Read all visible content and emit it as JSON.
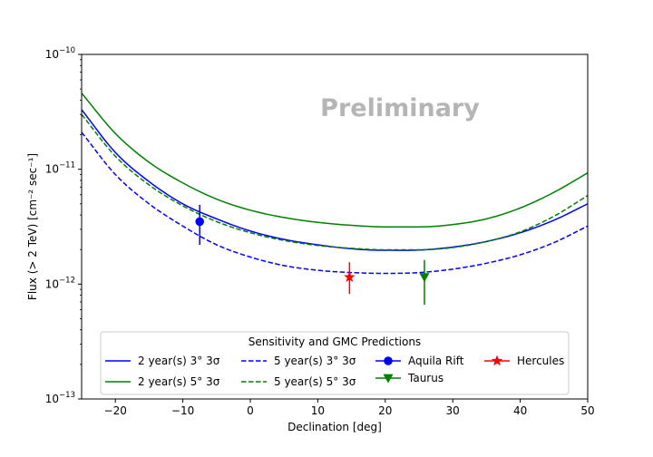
{
  "chart_data": {
    "type": "line",
    "title": "",
    "xlabel": "Declination [deg]",
    "ylabel": "Flux (> 2 TeV) [cm⁻² sec⁻¹]",
    "xlim": [
      -25,
      50
    ],
    "ylim": [
      1e-13,
      1e-10
    ],
    "yscale": "log",
    "x_ticks": [
      -20,
      -10,
      0,
      10,
      20,
      30,
      40,
      50
    ],
    "y_ticks": [
      1e-13,
      1e-12,
      1e-11,
      1e-10
    ],
    "y_tick_labels": [
      {
        "base": "10",
        "exp": "−13"
      },
      {
        "base": "10",
        "exp": "−12"
      },
      {
        "base": "10",
        "exp": "−11"
      },
      {
        "base": "10",
        "exp": "−10"
      }
    ],
    "watermark": "Preliminary",
    "legend": {
      "title": "Sensitivity and GMC Predictions",
      "location": "bottom-center"
    },
    "series": [
      {
        "name": "2 year(s) 3° 3σ",
        "color": "#0000ff",
        "style": "solid",
        "x": [
          -25,
          -20,
          -15,
          -10,
          -5,
          0,
          5,
          10,
          15,
          20,
          25,
          30,
          35,
          40,
          45,
          50
        ],
        "values": [
          3.3e-11,
          1.4e-11,
          7.8e-12,
          5e-12,
          3.7e-12,
          2.9e-12,
          2.45e-12,
          2.2e-12,
          2.03e-12,
          1.97e-12,
          1.98e-12,
          2.1e-12,
          2.35e-12,
          2.8e-12,
          3.6e-12,
          5e-12
        ]
      },
      {
        "name": "2 year(s) 5° 3σ",
        "color": "#008000",
        "style": "solid",
        "x": [
          -25,
          -20,
          -15,
          -10,
          -5,
          0,
          5,
          10,
          15,
          20,
          25,
          30,
          35,
          40,
          45,
          50
        ],
        "values": [
          4.6e-11,
          2.05e-11,
          1.15e-11,
          7.6e-12,
          5.5e-12,
          4.4e-12,
          3.8e-12,
          3.45e-12,
          3.25e-12,
          3.15e-12,
          3.15e-12,
          3.3e-12,
          3.7e-12,
          4.6e-12,
          6.3e-12,
          9.3e-12
        ]
      },
      {
        "name": "5 year(s) 3° 3σ",
        "color": "#0000ff",
        "style": "dashed",
        "x": [
          -25,
          -20,
          -15,
          -10,
          -5,
          0,
          5,
          10,
          15,
          20,
          25,
          30,
          35,
          40,
          45,
          50
        ],
        "values": [
          2.1e-11,
          9e-12,
          5e-12,
          3.2e-12,
          2.2e-12,
          1.72e-12,
          1.45e-12,
          1.32e-12,
          1.26e-12,
          1.24e-12,
          1.26e-12,
          1.35e-12,
          1.52e-12,
          1.8e-12,
          2.3e-12,
          3.2e-12
        ]
      },
      {
        "name": "5 year(s) 5° 3σ",
        "color": "#008000",
        "style": "dashed",
        "x": [
          -25,
          -20,
          -15,
          -10,
          -5,
          0,
          5,
          10,
          15,
          20,
          25,
          30,
          35,
          40,
          45,
          50
        ],
        "values": [
          3e-11,
          1.3e-11,
          7.3e-12,
          4.8e-12,
          3.5e-12,
          2.8e-12,
          2.4e-12,
          2.17e-12,
          2.05e-12,
          1.99e-12,
          1.99e-12,
          2.08e-12,
          2.35e-12,
          2.85e-12,
          3.9e-12,
          5.9e-12
        ]
      }
    ],
    "points": [
      {
        "name": "Aquila Rift",
        "x": -7.5,
        "y": 3.5e-12,
        "y_low": 2.2e-12,
        "y_high": 4.9e-12,
        "color": "#0000ff",
        "marker": "circle"
      },
      {
        "name": "Taurus",
        "x": 25.8,
        "y": 1.15e-12,
        "y_low": 6.6e-13,
        "y_high": 1.62e-12,
        "color": "#008000",
        "marker": "triangle-down"
      },
      {
        "name": "Hercules",
        "x": 14.7,
        "y": 1.15e-12,
        "y_low": 8.2e-13,
        "y_high": 1.55e-12,
        "color": "#ff0000",
        "marker": "star"
      }
    ]
  }
}
